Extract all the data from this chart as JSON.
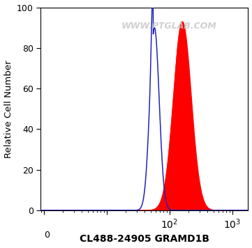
{
  "title": "",
  "xlabel": "CL488-24905 GRAMD1B",
  "ylabel": "Relative Cell Number",
  "ylim": [
    0,
    100
  ],
  "watermark": "WWW.PTGLAB.COM",
  "blue_peak_log": 1.76,
  "blue_peak_val": 90,
  "blue_std": 0.075,
  "blue_spike1_log": 1.755,
  "blue_spike1_val": 90,
  "blue_spike2_log": 1.775,
  "blue_spike2_val": 85,
  "blue_shoulder_log": 1.73,
  "blue_shoulder_val": 67,
  "red_peak_log": 2.2,
  "red_peak_val": 93,
  "red_std": 0.14,
  "red_shoulder_log": 2.15,
  "red_shoulder_val": 84,
  "blue_color": "#2222bb",
  "red_color": "#ff0000",
  "bg_color": "#ffffff",
  "xlabel_fontsize": 10,
  "ylabel_fontsize": 9.5,
  "tick_fontsize": 9,
  "watermark_fontsize": 9
}
